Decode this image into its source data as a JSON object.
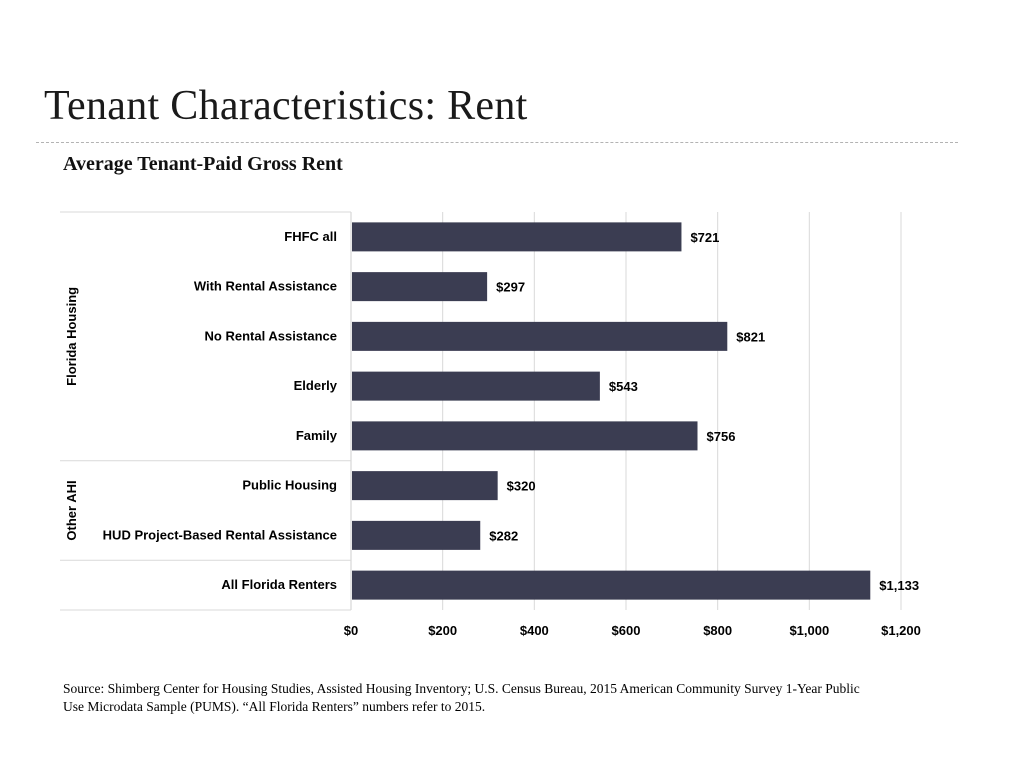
{
  "slide": {
    "title": "Tenant Characteristics: Rent",
    "source": "Source: Shimberg Center for Housing Studies, Assisted Housing Inventory; U.S. Census Bureau, 2015 American Community Survey 1-Year Public Use Microdata Sample (PUMS). “All Florida Renters” numbers refer to 2015."
  },
  "chart_data": {
    "type": "bar",
    "orientation": "horizontal",
    "title": "Average Tenant-Paid Gross Rent",
    "categories": [
      "FHFC all",
      "With Rental Assistance",
      "No Rental Assistance",
      "Elderly",
      "Family",
      "Public Housing",
      "HUD Project-Based Rental Assistance",
      "All Florida Renters"
    ],
    "values": [
      721,
      297,
      821,
      543,
      756,
      320,
      282,
      1133
    ],
    "data_labels": [
      "$721",
      "$297",
      "$821",
      "$543",
      "$756",
      "$320",
      "$282",
      "$1,133"
    ],
    "groups": [
      {
        "label": "Florida Housing",
        "start": 0,
        "end": 4
      },
      {
        "label": "Other AHI",
        "start": 5,
        "end": 6
      },
      {
        "label": "",
        "start": 7,
        "end": 7
      }
    ],
    "xlim": [
      0,
      1200
    ],
    "xticks": [
      0,
      200,
      400,
      600,
      800,
      1000,
      1200
    ],
    "xtick_labels": [
      "$0",
      "$200",
      "$400",
      "$600",
      "$800",
      "$1,000",
      "$1,200"
    ],
    "grid": true,
    "legend": "none",
    "bar_color": "#3b3d52"
  }
}
